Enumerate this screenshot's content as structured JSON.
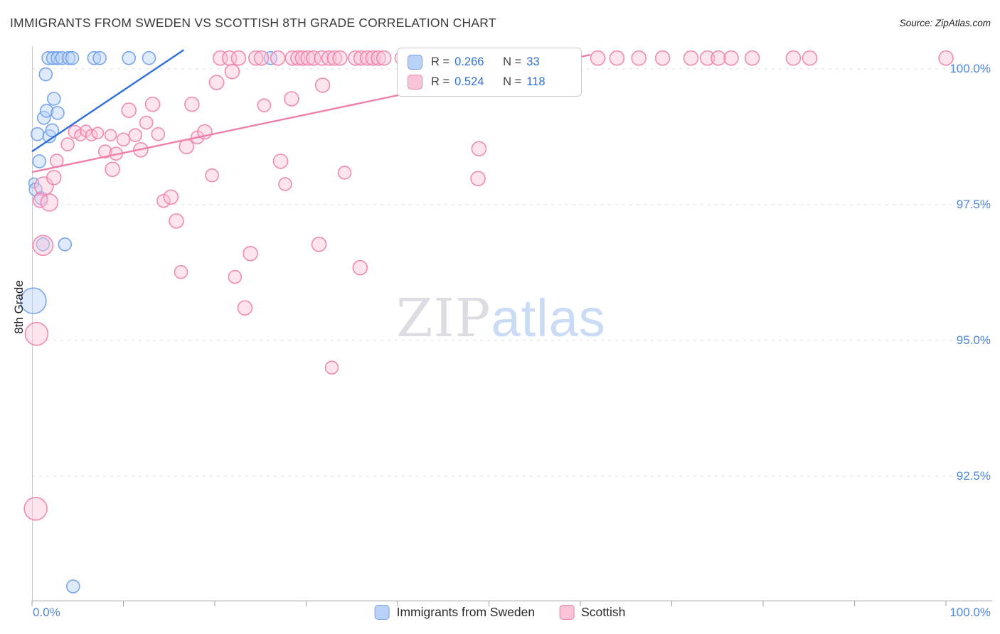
{
  "header": {
    "title": "IMMIGRANTS FROM SWEDEN VS SCOTTISH 8TH GRADE CORRELATION CHART",
    "source": "Source: ZipAtlas.com"
  },
  "watermark": {
    "part1": "ZIP",
    "part2": "atlas"
  },
  "axes": {
    "y_axis_title": "8th Grade",
    "x_min_label": "0.0%",
    "x_max_label": "100.0%",
    "y_ticks": [
      {
        "label": "100.0%",
        "value": 100
      },
      {
        "label": "97.5%",
        "value": 97.5
      },
      {
        "label": "95.0%",
        "value": 95
      },
      {
        "label": "92.5%",
        "value": 92.5
      }
    ]
  },
  "legend_box": {
    "rows": [
      {
        "r_label": "R =",
        "r_value": "0.266",
        "n_label": "N =",
        "n_value": "33"
      },
      {
        "r_label": "R =",
        "r_value": "0.524",
        "n_label": "N =",
        "n_value": "118"
      }
    ]
  },
  "bottom_legend": [
    {
      "label": "Immigrants from Sweden"
    },
    {
      "label": "Scottish"
    }
  ],
  "colors": {
    "blue_fill": "#b9d3f8",
    "blue_stroke": "#6d9ceb",
    "blue_line": "#2e6fd8",
    "pink_fill": "#fac3d8",
    "pink_stroke": "#ef7fab",
    "pink_line": "#ef7fab",
    "axis_label_blue": "#4e86d8",
    "grid": "#dedede",
    "axis_line": "#9f9f9f",
    "y_axis_line": "#c9c9c9"
  },
  "chart_data": {
    "type": "scatter",
    "title": "IMMIGRANTS FROM SWEDEN VS SCOTTISH 8TH GRADE CORRELATION CHART",
    "xlabel": "Immigrants from Sweden (%)",
    "ylabel": "8th Grade",
    "x_range": [
      0,
      100
    ],
    "y_range": [
      90.2,
      100.4
    ],
    "y_gridlines": [
      100,
      97.5,
      95,
      92.5
    ],
    "x_tick_step": 10,
    "grid": "horizontal-dashed",
    "legend_position": "top-center and bottom-center",
    "point_format": "[x_percent, y_percent, radius_px]",
    "series": [
      {
        "id": "sweden",
        "name": "Immigrants from Sweden",
        "R": 0.266,
        "N": 33,
        "fill": "#b9d3f8",
        "color": "#6d9ceb",
        "line_color": "#2e6fd8",
        "trend": {
          "x1": 0,
          "y1": 98.48,
          "x2": 16.6,
          "y2": 100.35
        },
        "points": [
          [
            1.8,
            100.2,
            9
          ],
          [
            2.3,
            100.2,
            9
          ],
          [
            2.8,
            100.2,
            9
          ],
          [
            3.3,
            100.2,
            9
          ],
          [
            4.0,
            100.2,
            9
          ],
          [
            4.4,
            100.2,
            9
          ],
          [
            6.8,
            100.2,
            9
          ],
          [
            7.4,
            100.2,
            9
          ],
          [
            10.6,
            100.2,
            9
          ],
          [
            12.8,
            100.2,
            9
          ],
          [
            26.1,
            100.2,
            9
          ],
          [
            0.6,
            98.8,
            9
          ],
          [
            0.8,
            98.3,
            9
          ],
          [
            0.2,
            97.9,
            7
          ],
          [
            0.4,
            97.78,
            9
          ],
          [
            1.3,
            99.1,
            9
          ],
          [
            1.5,
            99.9,
            9
          ],
          [
            1.6,
            99.23,
            9
          ],
          [
            1.9,
            98.76,
            9
          ],
          [
            2.2,
            98.87,
            9
          ],
          [
            2.4,
            99.45,
            9
          ],
          [
            2.8,
            99.19,
            9
          ],
          [
            1.0,
            97.62,
            9
          ],
          [
            1.2,
            96.77,
            9
          ],
          [
            3.6,
            96.77,
            9
          ],
          [
            0.15,
            95.73,
            18
          ],
          [
            4.5,
            90.47,
            9
          ]
        ]
      },
      {
        "id": "scottish",
        "name": "Scottish",
        "R": 0.524,
        "N": 118,
        "fill": "#fac3d8",
        "color": "#ef7fab",
        "line_color": "#ef7fab",
        "trend": {
          "x1": 0,
          "y1": 98.1,
          "x2": 61.1,
          "y2": 100.26
        },
        "points": [
          [
            20.6,
            100.2,
            10
          ],
          [
            21.6,
            100.2,
            10
          ],
          [
            22.6,
            100.2,
            10
          ],
          [
            24.5,
            100.2,
            10
          ],
          [
            25.1,
            100.2,
            10
          ],
          [
            26.9,
            100.2,
            10
          ],
          [
            28.5,
            100.2,
            10
          ],
          [
            29.1,
            100.2,
            10
          ],
          [
            29.6,
            100.2,
            10
          ],
          [
            30.2,
            100.2,
            10
          ],
          [
            30.8,
            100.2,
            10
          ],
          [
            31.7,
            100.2,
            10
          ],
          [
            32.5,
            100.2,
            10
          ],
          [
            33.1,
            100.2,
            10
          ],
          [
            33.7,
            100.2,
            10
          ],
          [
            35.4,
            100.2,
            10
          ],
          [
            36.0,
            100.2,
            10
          ],
          [
            36.7,
            100.2,
            10
          ],
          [
            37.3,
            100.2,
            10
          ],
          [
            37.9,
            100.2,
            10
          ],
          [
            38.5,
            100.2,
            10
          ],
          [
            40.5,
            100.2,
            10
          ],
          [
            41.1,
            100.2,
            10
          ],
          [
            41.7,
            100.2,
            10
          ],
          [
            42.4,
            100.2,
            10
          ],
          [
            43.2,
            100.2,
            10
          ],
          [
            44.0,
            100.2,
            10
          ],
          [
            44.6,
            100.2,
            10
          ],
          [
            45.2,
            100.2,
            10
          ],
          [
            46.3,
            100.2,
            10
          ],
          [
            47.1,
            100.2,
            10
          ],
          [
            47.9,
            100.2,
            10
          ],
          [
            48.6,
            100.2,
            10
          ],
          [
            49.4,
            100.2,
            10
          ],
          [
            50.4,
            100.2,
            10
          ],
          [
            51.0,
            100.2,
            10
          ],
          [
            51.8,
            100.2,
            10
          ],
          [
            52.5,
            100.2,
            10
          ],
          [
            53.3,
            100.2,
            10
          ],
          [
            54.2,
            100.2,
            10
          ],
          [
            55.0,
            100.2,
            10
          ],
          [
            55.8,
            100.2,
            10
          ],
          [
            56.8,
            100.2,
            10
          ],
          [
            58.0,
            100.2,
            10
          ],
          [
            59.1,
            100.2,
            10
          ],
          [
            61.9,
            100.2,
            10
          ],
          [
            64.0,
            100.2,
            10
          ],
          [
            66.4,
            100.2,
            10
          ],
          [
            69.0,
            100.2,
            10
          ],
          [
            72.1,
            100.2,
            10
          ],
          [
            73.9,
            100.2,
            10
          ],
          [
            75.1,
            100.2,
            10
          ],
          [
            76.5,
            100.2,
            10
          ],
          [
            78.8,
            100.2,
            10
          ],
          [
            83.3,
            100.2,
            10
          ],
          [
            85.1,
            100.2,
            10
          ],
          [
            100.0,
            100.2,
            10
          ],
          [
            1.3,
            97.84,
            13
          ],
          [
            0.9,
            97.58,
            10
          ],
          [
            1.9,
            97.54,
            12
          ],
          [
            1.2,
            96.75,
            14
          ],
          [
            0.5,
            95.12,
            16
          ],
          [
            0.4,
            91.9,
            16
          ],
          [
            2.4,
            98.0,
            10
          ],
          [
            2.7,
            98.31,
            9
          ],
          [
            3.9,
            98.61,
            9
          ],
          [
            4.7,
            98.84,
            9
          ],
          [
            5.3,
            98.78,
            8
          ],
          [
            5.9,
            98.86,
            8
          ],
          [
            6.5,
            98.78,
            8
          ],
          [
            7.2,
            98.82,
            8
          ],
          [
            8.0,
            98.48,
            9
          ],
          [
            8.6,
            98.78,
            8
          ],
          [
            9.2,
            98.44,
            9
          ],
          [
            8.8,
            98.15,
            10
          ],
          [
            10.0,
            98.7,
            9
          ],
          [
            10.6,
            99.24,
            10
          ],
          [
            11.3,
            98.78,
            9
          ],
          [
            11.9,
            98.51,
            10
          ],
          [
            12.5,
            99.01,
            9
          ],
          [
            13.2,
            99.35,
            10
          ],
          [
            13.8,
            98.8,
            9
          ],
          [
            14.4,
            97.57,
            9
          ],
          [
            15.2,
            97.64,
            10
          ],
          [
            15.8,
            97.2,
            10
          ],
          [
            16.3,
            96.26,
            9
          ],
          [
            16.9,
            98.57,
            10
          ],
          [
            17.5,
            99.35,
            10
          ],
          [
            18.1,
            98.74,
            9
          ],
          [
            18.9,
            98.84,
            10
          ],
          [
            19.7,
            98.04,
            9
          ],
          [
            20.2,
            99.75,
            10
          ],
          [
            21.9,
            99.95,
            10
          ],
          [
            22.2,
            96.17,
            9
          ],
          [
            23.3,
            95.6,
            10
          ],
          [
            23.9,
            96.6,
            10
          ],
          [
            25.4,
            99.33,
            9
          ],
          [
            27.2,
            98.3,
            10
          ],
          [
            27.7,
            97.88,
            9
          ],
          [
            28.4,
            99.45,
            10
          ],
          [
            31.4,
            96.77,
            10
          ],
          [
            31.8,
            99.7,
            10
          ],
          [
            32.8,
            94.5,
            9
          ],
          [
            34.2,
            98.09,
            9
          ],
          [
            35.9,
            96.34,
            10
          ],
          [
            48.9,
            98.53,
            10
          ],
          [
            48.8,
            97.98,
            10
          ]
        ]
      }
    ]
  }
}
